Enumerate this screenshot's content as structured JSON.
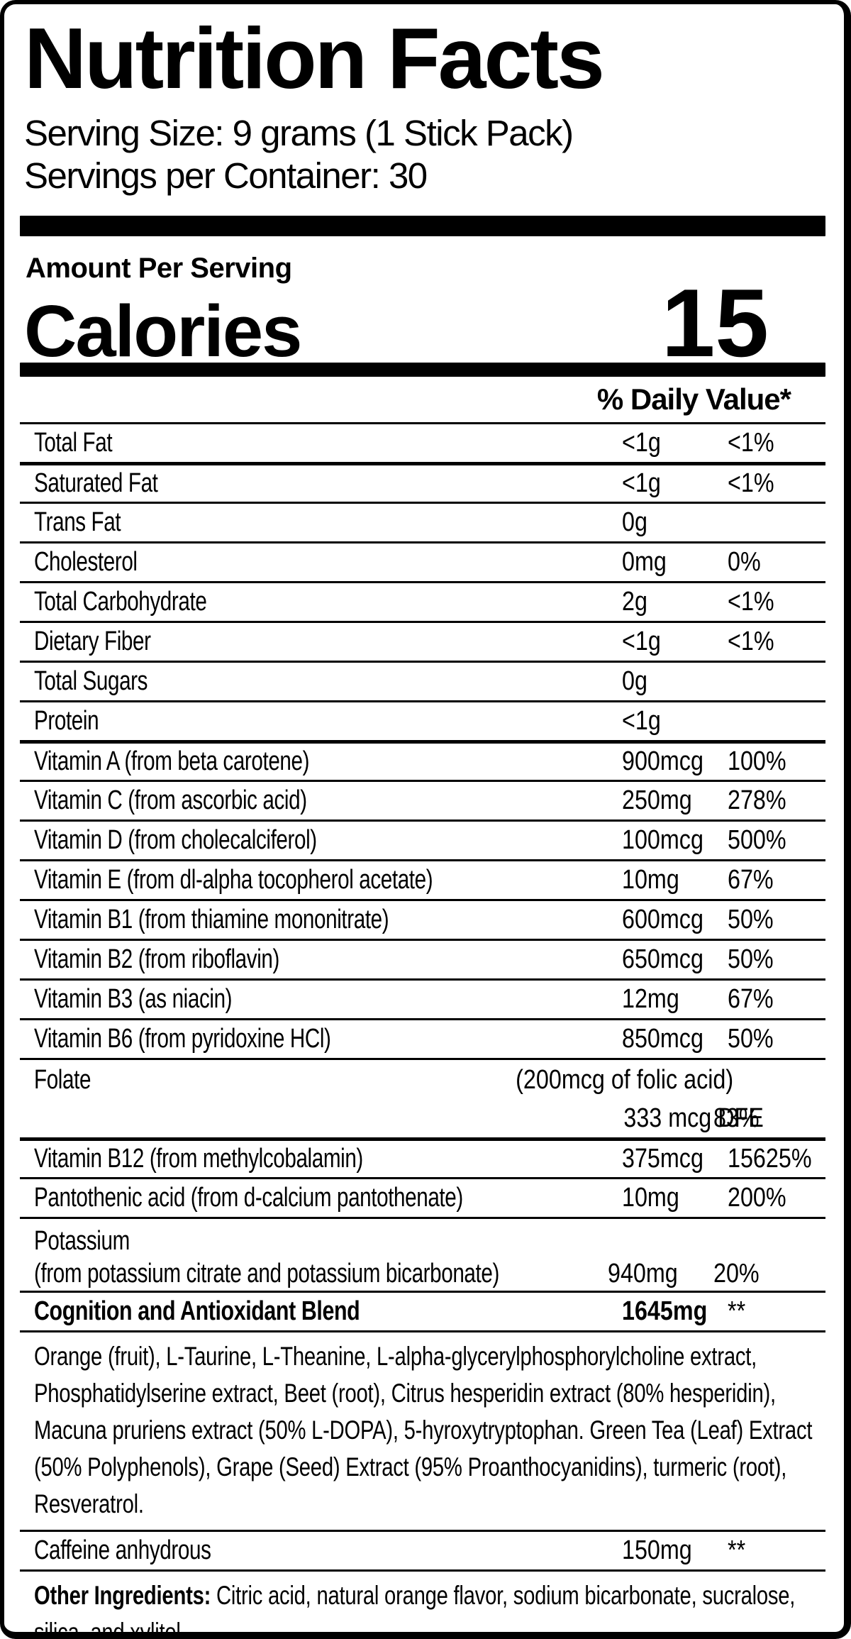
{
  "colors": {
    "ink": "#000000",
    "paper": "#ffffff"
  },
  "header": {
    "title": "Nutrition Facts",
    "serving_size": "Serving Size: 9 grams (1 Stick Pack)",
    "servings_per_container": "Servings per Container: 30",
    "amount_per_serving": "Amount Per Serving",
    "calories_label": "Calories",
    "calories_value": "15"
  },
  "table": {
    "daily_value_header": "% Daily Value*",
    "rows": [
      {
        "type": "simple",
        "name": "Total Fat",
        "amount": "<1g",
        "dv": "<1%"
      },
      {
        "type": "simple",
        "name": "Saturated Fat",
        "amount": "<1g",
        "dv": "<1%"
      },
      {
        "type": "simple",
        "name": "Trans Fat",
        "amount": "0g",
        "dv": ""
      },
      {
        "type": "simple",
        "name": "Cholesterol",
        "amount": "0mg",
        "dv": "0%"
      },
      {
        "type": "simple",
        "name": "Total Carbohydrate",
        "amount": "2g",
        "dv": "<1%"
      },
      {
        "type": "simple",
        "name": "Dietary Fiber",
        "amount": "<1g",
        "dv": "<1%"
      },
      {
        "type": "simple",
        "name": "Total Sugars",
        "amount": "0g",
        "dv": ""
      },
      {
        "type": "simple",
        "name": "Protein",
        "amount": "<1g",
        "dv": ""
      },
      {
        "type": "simple",
        "name": "Vitamin A (from beta carotene)",
        "amount": "900mcg",
        "dv": "100%"
      },
      {
        "type": "simple",
        "name": "Vitamin C (from ascorbic acid)",
        "amount": "250mg",
        "dv": "278%"
      },
      {
        "type": "simple",
        "name": "Vitamin D (from cholecalciferol)",
        "amount": "100mcg",
        "dv": "500%"
      },
      {
        "type": "simple",
        "name": "Vitamin E (from dl-alpha tocopherol acetate)",
        "amount": "10mg",
        "dv": "67%"
      },
      {
        "type": "simple",
        "name": "Vitamin B1 (from thiamine mononitrate)",
        "amount": "600mcg",
        "dv": "50%"
      },
      {
        "type": "simple",
        "name": "Vitamin B2 (from riboflavin)",
        "amount": "650mcg",
        "dv": "50%"
      },
      {
        "type": "simple",
        "name": "Vitamin B3 (as niacin)",
        "amount": "12mg",
        "dv": "67%"
      },
      {
        "type": "simple",
        "name": "Vitamin B6 (from pyridoxine HCl)",
        "amount": "850mcg",
        "dv": "50%"
      },
      {
        "type": "folate",
        "name": "Folate",
        "note": "(200mcg of folic acid)",
        "amount": "333 mcg DFE",
        "dv": "83%"
      },
      {
        "type": "simple",
        "name": "Vitamin B12 (from methylcobalamin)",
        "amount": "375mcg",
        "dv": "15625%"
      },
      {
        "type": "simple",
        "name": "Pantothenic acid (from d-calcium pantothenate)",
        "amount": "10mg",
        "dv": "200%"
      },
      {
        "type": "twoline",
        "name": "Potassium",
        "subname": "(from potassium citrate and potassium bicarbonate)",
        "amount": "940mg",
        "dv": "20%"
      },
      {
        "type": "simple",
        "bold": true,
        "name": "Cognition and Antioxidant Blend",
        "amount": "1645mg",
        "dv": "**"
      },
      {
        "type": "paragraph",
        "text": "Orange (fruit), L-Taurine, L-Theanine, L-alpha-glycerylphosphorylcholine extract, Phosphatidylserine extract, Beet (root), Citrus hesperidin extract (80% hesperidin), Macuna pruriens extract (50% L-DOPA), 5-hyroxytryptophan. Green Tea (Leaf) Extract (50% Polyphenols), Grape (Seed) Extract (95% Proanthocyanidins), turmeric (root), Resveratrol."
      },
      {
        "type": "simple",
        "name": "Caffeine anhydrous",
        "amount": "150mg",
        "dv": "**"
      },
      {
        "type": "other",
        "prefix": "Other Ingredients:",
        "text": "Citric acid, natural orange flavor, sodium bicarbonate, sucralose, silica, and xylitol."
      }
    ]
  }
}
